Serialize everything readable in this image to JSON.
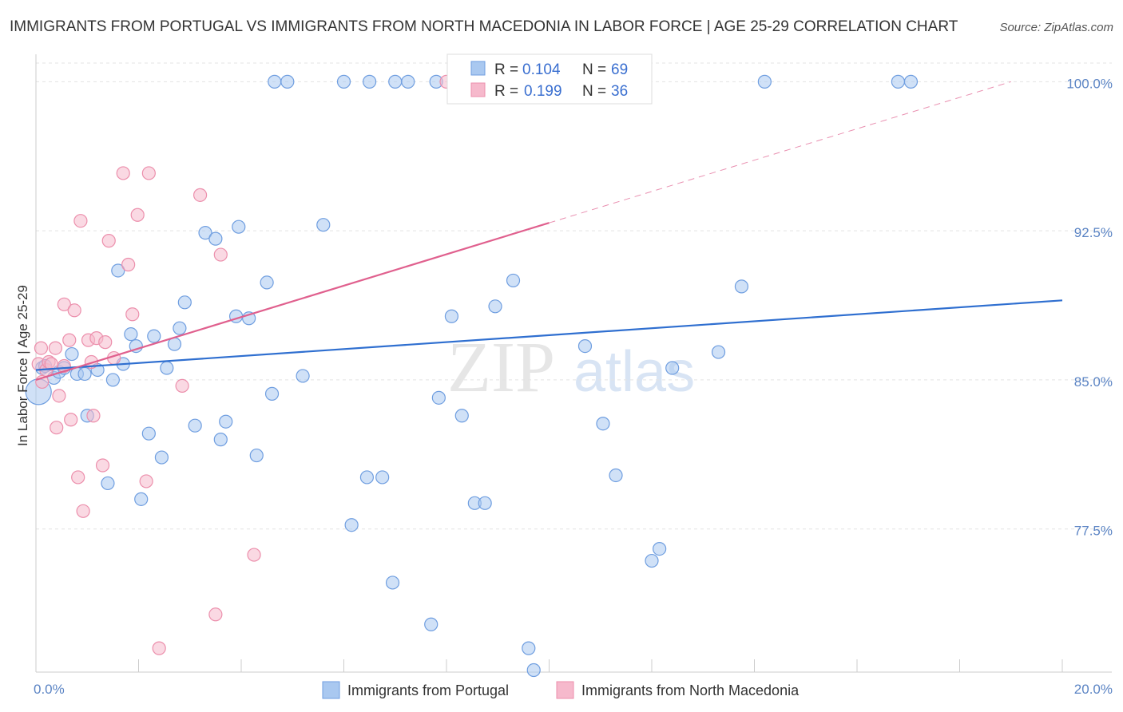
{
  "colors": {
    "series1_fill": "#a9c8f0",
    "series1_stroke": "#6f9ee0",
    "series1_line": "#2f6fd0",
    "series2_fill": "#f6b9cc",
    "series2_stroke": "#ec8fac",
    "series2_line": "#e0608e",
    "grid": "#e3e3e3",
    "axis": "#cccccc",
    "tick_label": "#5b84c4"
  },
  "chart_data": {
    "type": "scatter",
    "title": "IMMIGRANTS FROM PORTUGAL VS IMMIGRANTS FROM NORTH MACEDONIA IN LABOR FORCE | AGE 25-29 CORRELATION CHART",
    "source": "Source: ZipAtlas.com",
    "xlabel": "",
    "ylabel": "In Labor Force | Age 25-29",
    "xlim": [
      0,
      20
    ],
    "ylim": [
      70.3,
      101.1
    ],
    "x_tick_labels": [
      "0.0%",
      "20.0%"
    ],
    "y_ticks": [
      77.5,
      85.0,
      92.5,
      100.0
    ],
    "y_tick_labels": [
      "77.5%",
      "85.0%",
      "92.5%",
      "100.0%"
    ],
    "watermark": {
      "zip": "ZIP",
      "atlas": "atlas"
    },
    "legend_box": {
      "rows": [
        {
          "r_label": "R =",
          "r_value": "0.104",
          "n_label": "N =",
          "n_value": "69"
        },
        {
          "r_label": "R =",
          "r_value": "0.199",
          "n_label": "N =",
          "n_value": "36"
        }
      ]
    },
    "series": [
      {
        "name": "Immigrants from Portugal",
        "trend": {
          "x": [
            0.0,
            20.0
          ],
          "y": [
            85.5,
            89.0
          ],
          "dashed_extension": null
        },
        "points": [
          {
            "x": 0.05,
            "y": 84.4,
            "big": true
          },
          {
            "x": 0.12,
            "y": 85.6
          },
          {
            "x": 0.18,
            "y": 85.7
          },
          {
            "x": 0.35,
            "y": 85.1
          },
          {
            "x": 0.45,
            "y": 85.4
          },
          {
            "x": 0.55,
            "y": 85.6
          },
          {
            "x": 0.7,
            "y": 86.3
          },
          {
            "x": 0.8,
            "y": 85.3
          },
          {
            "x": 0.95,
            "y": 85.3
          },
          {
            "x": 1.0,
            "y": 83.2
          },
          {
            "x": 1.2,
            "y": 85.5
          },
          {
            "x": 1.4,
            "y": 79.8
          },
          {
            "x": 1.5,
            "y": 85.0
          },
          {
            "x": 1.6,
            "y": 90.5
          },
          {
            "x": 1.7,
            "y": 85.8
          },
          {
            "x": 1.85,
            "y": 87.3
          },
          {
            "x": 1.95,
            "y": 86.7
          },
          {
            "x": 2.05,
            "y": 79.0
          },
          {
            "x": 2.2,
            "y": 82.3
          },
          {
            "x": 2.3,
            "y": 87.2
          },
          {
            "x": 2.45,
            "y": 81.1
          },
          {
            "x": 2.55,
            "y": 85.6
          },
          {
            "x": 2.7,
            "y": 86.8
          },
          {
            "x": 2.8,
            "y": 87.6
          },
          {
            "x": 2.9,
            "y": 88.9
          },
          {
            "x": 3.1,
            "y": 82.7
          },
          {
            "x": 3.3,
            "y": 92.4
          },
          {
            "x": 3.5,
            "y": 92.1
          },
          {
            "x": 3.6,
            "y": 82.0
          },
          {
            "x": 3.7,
            "y": 82.9
          },
          {
            "x": 3.9,
            "y": 88.2
          },
          {
            "x": 3.95,
            "y": 92.7
          },
          {
            "x": 4.15,
            "y": 88.1
          },
          {
            "x": 4.3,
            "y": 81.2
          },
          {
            "x": 4.5,
            "y": 89.9
          },
          {
            "x": 4.6,
            "y": 84.3
          },
          {
            "x": 4.65,
            "y": 100.0
          },
          {
            "x": 4.9,
            "y": 100.0
          },
          {
            "x": 5.2,
            "y": 85.2
          },
          {
            "x": 5.6,
            "y": 92.8
          },
          {
            "x": 6.0,
            "y": 100.0
          },
          {
            "x": 6.15,
            "y": 77.7
          },
          {
            "x": 6.45,
            "y": 80.1
          },
          {
            "x": 6.5,
            "y": 100.0
          },
          {
            "x": 6.75,
            "y": 80.1
          },
          {
            "x": 6.95,
            "y": 74.8
          },
          {
            "x": 7.0,
            "y": 100.0
          },
          {
            "x": 7.25,
            "y": 100.0
          },
          {
            "x": 7.7,
            "y": 72.7
          },
          {
            "x": 7.8,
            "y": 100.0
          },
          {
            "x": 7.85,
            "y": 84.1
          },
          {
            "x": 8.1,
            "y": 88.2
          },
          {
            "x": 8.3,
            "y": 83.2
          },
          {
            "x": 8.55,
            "y": 78.8
          },
          {
            "x": 8.75,
            "y": 78.8
          },
          {
            "x": 8.95,
            "y": 88.7
          },
          {
            "x": 9.3,
            "y": 90.0
          },
          {
            "x": 9.6,
            "y": 71.5
          },
          {
            "x": 9.7,
            "y": 70.4
          },
          {
            "x": 10.7,
            "y": 86.7
          },
          {
            "x": 11.05,
            "y": 82.8
          },
          {
            "x": 11.3,
            "y": 80.2
          },
          {
            "x": 12.0,
            "y": 75.9
          },
          {
            "x": 12.15,
            "y": 76.5
          },
          {
            "x": 12.4,
            "y": 85.6
          },
          {
            "x": 13.3,
            "y": 86.4
          },
          {
            "x": 13.75,
            "y": 89.7
          },
          {
            "x": 14.2,
            "y": 100.0
          },
          {
            "x": 16.8,
            "y": 100.0
          },
          {
            "x": 17.05,
            "y": 100.0
          }
        ]
      },
      {
        "name": "Immigrants from North Macedonia",
        "trend": {
          "x": [
            0.0,
            10.0
          ],
          "y": [
            85.0,
            92.9
          ],
          "dashed_extension": {
            "x": [
              10.0,
              19.0
            ],
            "y": [
              92.9,
              100.0
            ]
          }
        },
        "points": [
          {
            "x": 0.05,
            "y": 85.8
          },
          {
            "x": 0.1,
            "y": 86.6
          },
          {
            "x": 0.12,
            "y": 84.9
          },
          {
            "x": 0.2,
            "y": 85.5
          },
          {
            "x": 0.25,
            "y": 85.9
          },
          {
            "x": 0.3,
            "y": 85.8
          },
          {
            "x": 0.38,
            "y": 86.6
          },
          {
            "x": 0.4,
            "y": 82.6
          },
          {
            "x": 0.45,
            "y": 84.2
          },
          {
            "x": 0.55,
            "y": 85.7
          },
          {
            "x": 0.55,
            "y": 88.8
          },
          {
            "x": 0.65,
            "y": 87.0
          },
          {
            "x": 0.68,
            "y": 83.0
          },
          {
            "x": 0.75,
            "y": 88.5
          },
          {
            "x": 0.82,
            "y": 80.1
          },
          {
            "x": 0.87,
            "y": 93.0
          },
          {
            "x": 0.92,
            "y": 78.4
          },
          {
            "x": 1.02,
            "y": 87.0
          },
          {
            "x": 1.08,
            "y": 85.9
          },
          {
            "x": 1.12,
            "y": 83.2
          },
          {
            "x": 1.18,
            "y": 87.1
          },
          {
            "x": 1.3,
            "y": 80.7
          },
          {
            "x": 1.35,
            "y": 86.9
          },
          {
            "x": 1.42,
            "y": 92.0
          },
          {
            "x": 1.52,
            "y": 86.1
          },
          {
            "x": 1.7,
            "y": 95.4
          },
          {
            "x": 1.8,
            "y": 90.8
          },
          {
            "x": 1.88,
            "y": 88.3
          },
          {
            "x": 1.98,
            "y": 93.3
          },
          {
            "x": 2.15,
            "y": 79.9
          },
          {
            "x": 2.2,
            "y": 95.4
          },
          {
            "x": 2.4,
            "y": 71.5
          },
          {
            "x": 2.85,
            "y": 84.7
          },
          {
            "x": 3.2,
            "y": 94.3
          },
          {
            "x": 3.5,
            "y": 73.2
          },
          {
            "x": 3.6,
            "y": 91.3
          },
          {
            "x": 4.25,
            "y": 76.2
          },
          {
            "x": 8.0,
            "y": 100.0
          }
        ]
      }
    ]
  },
  "legend": {
    "items": [
      {
        "label": "Immigrants from Portugal"
      },
      {
        "label": "Immigrants from North Macedonia"
      }
    ]
  }
}
